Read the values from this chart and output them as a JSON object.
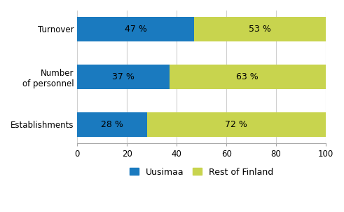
{
  "categories": [
    "Turnover",
    "Number\nof personnel",
    "Establishments"
  ],
  "uusimaa_values": [
    47,
    37,
    28
  ],
  "rest_values": [
    53,
    63,
    72
  ],
  "uusimaa_color": "#1a7abf",
  "rest_color": "#c8d44e",
  "uusimaa_label": "Uusimaa",
  "rest_label": "Rest of Finland",
  "xlim": [
    0,
    100
  ],
  "xticks": [
    0,
    20,
    40,
    60,
    80,
    100
  ],
  "bar_height": 0.52,
  "text_color": "#000000",
  "label_fontsize": 9,
  "tick_fontsize": 8.5,
  "legend_fontsize": 9,
  "grid_color": "#d0d0d0"
}
